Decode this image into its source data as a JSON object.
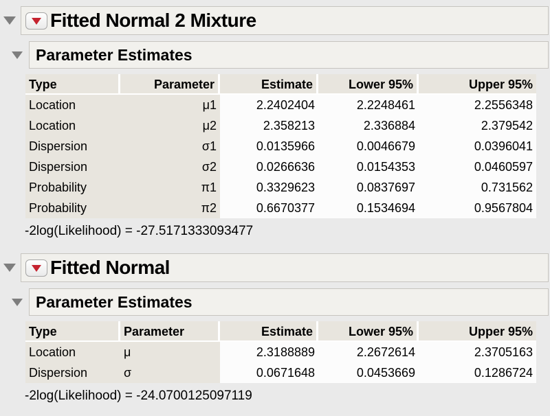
{
  "colors": {
    "page_bg": "#eaeaea",
    "panel_bg": "#f1f0ec",
    "panel_border": "#c6c4bf",
    "table_label_bg": "#e8e5de",
    "table_numeric_bg": "#fcfcfc",
    "menu_triangle_red": "#c5232f",
    "disclosure_gray": "#7e7e7e",
    "text": "#000000"
  },
  "icons": {
    "disclosure_triangle": "down-pointing gray triangle (expanded outline node)",
    "red_triangle_menu": "down-pointing red triangle inside rounded button (JMP options menu)"
  },
  "sections": [
    {
      "title": "Fitted Normal 2 Mixture",
      "subtitle": "Parameter Estimates",
      "table": {
        "columns": [
          "Type",
          "Parameter",
          "Estimate",
          "Lower 95%",
          "Upper 95%"
        ],
        "column_alignments": [
          "left",
          "right",
          "right",
          "right",
          "right"
        ],
        "rows": [
          [
            "Location",
            "μ1",
            "2.2402404",
            "2.2248461",
            "2.2556348"
          ],
          [
            "Location",
            "μ2",
            "2.358213",
            "2.336884",
            "2.379542"
          ],
          [
            "Dispersion",
            "σ1",
            "0.0135966",
            "0.0046679",
            "0.0396041"
          ],
          [
            "Dispersion",
            "σ2",
            "0.0266636",
            "0.0154353",
            "0.0460597"
          ],
          [
            "Probability",
            "π1",
            "0.3329623",
            "0.0837697",
            "0.731562"
          ],
          [
            "Probability",
            "π2",
            "0.6670377",
            "0.1534694",
            "0.9567804"
          ]
        ]
      },
      "footnote": "-2log(Likelihood) = -27.5171333093477"
    },
    {
      "title": "Fitted Normal",
      "subtitle": "Parameter Estimates",
      "table": {
        "columns": [
          "Type",
          "Parameter",
          "Estimate",
          "Lower 95%",
          "Upper 95%"
        ],
        "column_alignments": [
          "left",
          "left",
          "right",
          "right",
          "right"
        ],
        "rows": [
          [
            "Location",
            "μ",
            "2.3188889",
            "2.2672614",
            "2.3705163"
          ],
          [
            "Dispersion",
            "σ",
            "0.0671648",
            "0.0453669",
            "0.1286724"
          ]
        ]
      },
      "footnote": "-2log(Likelihood) = -24.0700125097119"
    }
  ]
}
